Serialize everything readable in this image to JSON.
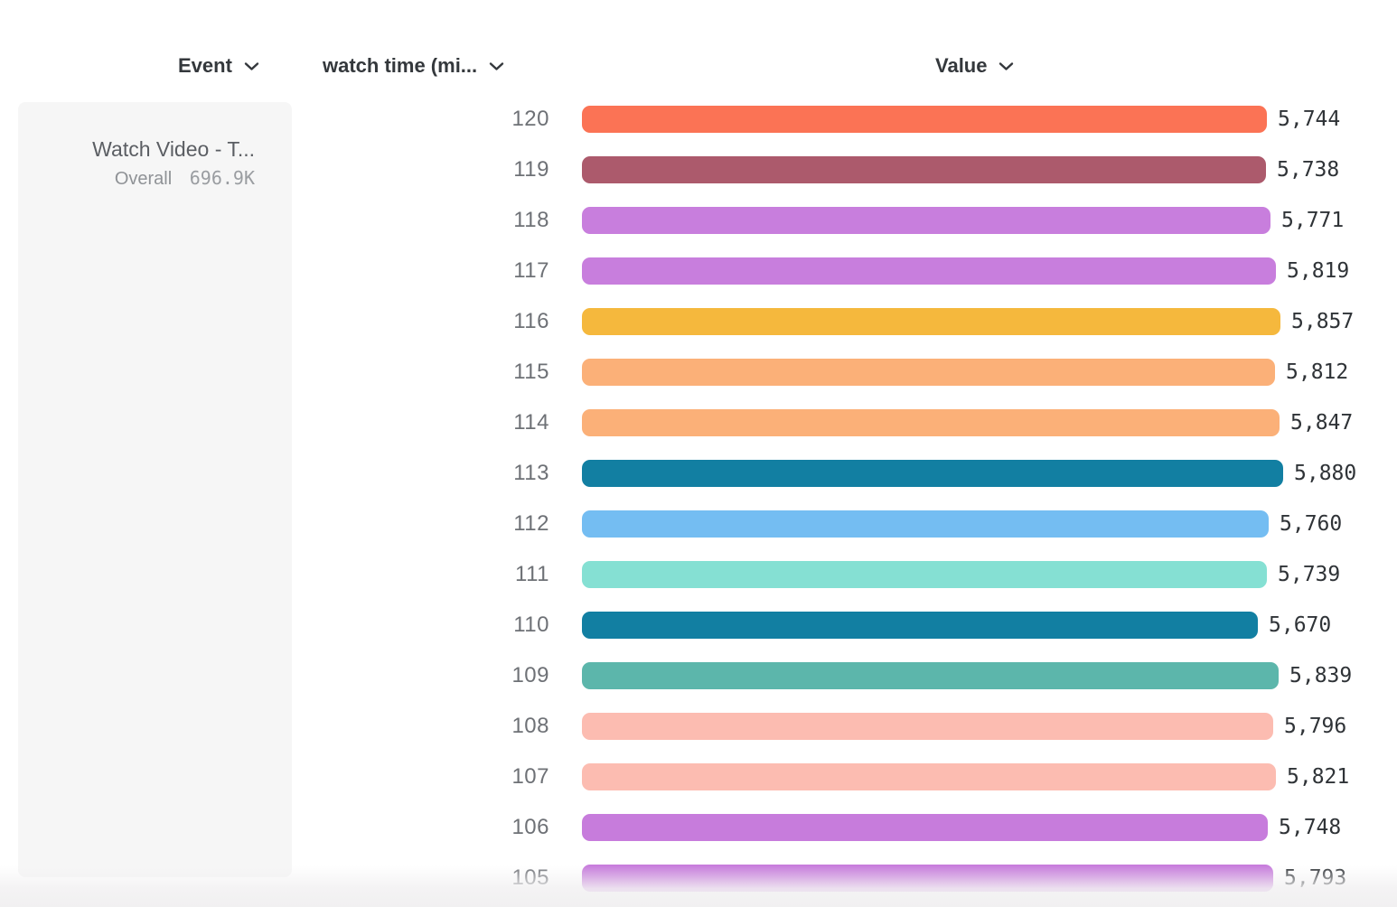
{
  "header": {
    "columns": [
      {
        "label": "Event"
      },
      {
        "label": "watch time (mi..."
      },
      {
        "label": "Value"
      }
    ]
  },
  "sidebar": {
    "event_title": "Watch Video - T...",
    "overall_label": "Overall",
    "overall_value": "696.9K"
  },
  "icons": {
    "chevron_down": "chevron-down-icon"
  },
  "colors": {
    "header_text": "#34383c",
    "row_label_text": "#6e7176",
    "value_text": "#2f3337",
    "panel_bg": "#f6f6f6",
    "footer_fade": "#f1f0f1"
  },
  "chart_data": {
    "type": "bar",
    "orientation": "horizontal",
    "title": "",
    "xlabel": "Value",
    "ylabel": "watch time (mi...",
    "legend": "none",
    "grid": false,
    "xlim": [
      0,
      5880
    ],
    "categories": [
      "120",
      "119",
      "118",
      "117",
      "116",
      "115",
      "114",
      "113",
      "112",
      "111",
      "110",
      "109",
      "108",
      "107",
      "106",
      "105"
    ],
    "values": [
      5744,
      5738,
      5771,
      5819,
      5857,
      5812,
      5847,
      5880,
      5760,
      5739,
      5670,
      5839,
      5796,
      5821,
      5748,
      5793
    ],
    "value_labels": [
      "5,744",
      "5,738",
      "5,771",
      "5,819",
      "5,857",
      "5,812",
      "5,847",
      "5,880",
      "5,760",
      "5,739",
      "5,670",
      "5,839",
      "5,796",
      "5,821",
      "5,748",
      "5,793"
    ],
    "bar_colors": [
      "#fb7355",
      "#ac5a6c",
      "#c87edd",
      "#c87edd",
      "#f5b83d",
      "#fbb078",
      "#fbb078",
      "#127fa2",
      "#74bdf2",
      "#85e0d3",
      "#127fa2",
      "#5cb6ab",
      "#fcbcb1",
      "#fcbcb1",
      "#c77cdc",
      "#c77cdc"
    ]
  }
}
